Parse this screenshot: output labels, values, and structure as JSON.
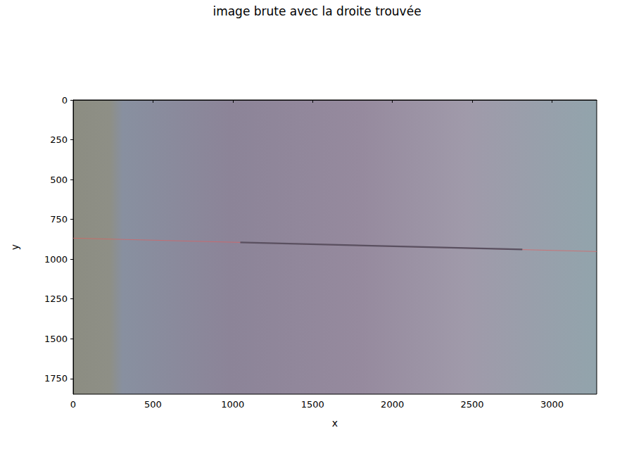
{
  "chart_data": {
    "type": "line",
    "title": "image brute avec la droite trouvée",
    "x_label": "x",
    "y_label": "y",
    "xlim": [
      0,
      3280
    ],
    "ylim": [
      1848,
      0
    ],
    "xticks": [
      0,
      500,
      1000,
      1500,
      2000,
      2500,
      3000
    ],
    "yticks": [
      0,
      250,
      500,
      750,
      1000,
      1250,
      1500,
      1750
    ],
    "grid": false,
    "series": [
      {
        "color": "#e06060",
        "x": [
          0,
          3280
        ],
        "values": [
          868,
          952
        ]
      },
      {
        "color": "#5a5060",
        "x": [
          1047,
          2814
        ],
        "values": [
          895,
          939
        ]
      }
    ]
  }
}
